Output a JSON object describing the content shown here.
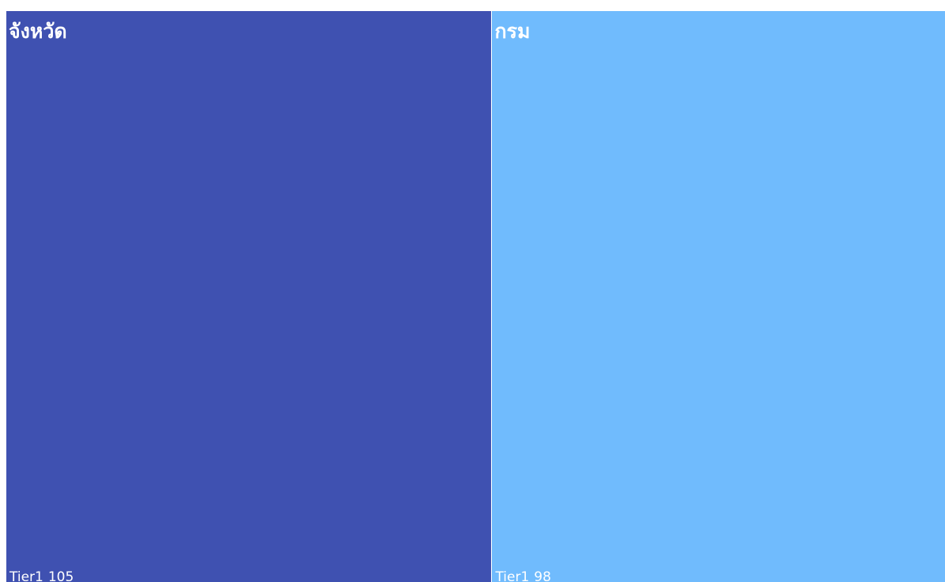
{
  "chart_data": {
    "type": "treemap",
    "title": "",
    "items": [
      {
        "label": "จังหวัด",
        "sublabel": "Tier1",
        "value": 105,
        "color": "#3f51b1"
      },
      {
        "label": "กรม",
        "sublabel": "Tier1",
        "value": 98,
        "color": "#70bbfd"
      }
    ]
  }
}
